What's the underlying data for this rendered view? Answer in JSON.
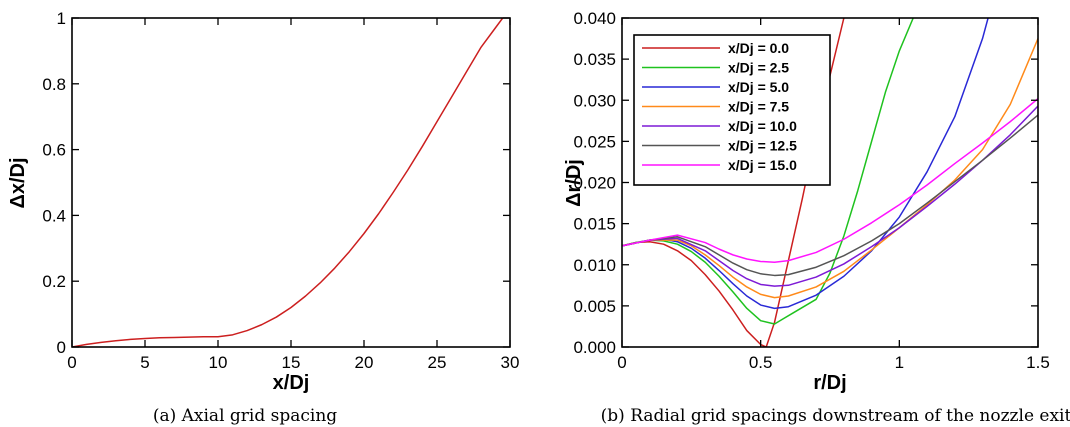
{
  "chart_data": [
    {
      "type": "line",
      "caption": "(a) Axial grid spacing",
      "xlabel": "x/Dj",
      "ylabel": "Δx/Dj",
      "xlim": [
        0,
        30
      ],
      "ylim": [
        0,
        1
      ],
      "xticks": [
        "0",
        "5",
        "10",
        "15",
        "20",
        "25",
        "30"
      ],
      "yticks": [
        "0",
        "0.2",
        "0.4",
        "0.6",
        "0.8",
        "1"
      ],
      "grid": false,
      "series": [
        {
          "color": "#cc1f1f",
          "x": [
            0,
            1,
            2,
            3,
            4,
            5,
            6,
            7,
            8,
            9,
            10,
            11,
            12,
            13,
            14,
            15,
            16,
            17,
            18,
            19,
            20,
            21,
            22,
            23,
            24,
            25,
            26,
            27,
            28,
            29,
            29.5
          ],
          "y": [
            0.0,
            0.008,
            0.014,
            0.019,
            0.023,
            0.026,
            0.028,
            0.029,
            0.03,
            0.031,
            0.031,
            0.037,
            0.05,
            0.068,
            0.091,
            0.12,
            0.155,
            0.195,
            0.24,
            0.29,
            0.345,
            0.405,
            0.47,
            0.538,
            0.61,
            0.685,
            0.76,
            0.835,
            0.91,
            0.97,
            1.0
          ]
        }
      ]
    },
    {
      "type": "line",
      "caption": "(b) Radial grid spacings downstream of the nozzle exit",
      "xlabel": "r/Dj",
      "ylabel": "Δr/Dj",
      "xlim": [
        0,
        1.5
      ],
      "ylim": [
        0,
        0.04
      ],
      "xticks": [
        "0",
        "0.5",
        "1",
        "1.5"
      ],
      "yticks": [
        "0.000",
        "0.005",
        "0.010",
        "0.015",
        "0.020",
        "0.025",
        "0.030",
        "0.035",
        "0.040"
      ],
      "grid": false,
      "legend_position": "top-left",
      "series": [
        {
          "name": "x/Dj = 0.0",
          "color": "#cc1f1f",
          "x": [
            0,
            0.05,
            0.1,
            0.15,
            0.2,
            0.25,
            0.3,
            0.35,
            0.4,
            0.45,
            0.5,
            0.52,
            0.55,
            0.6,
            0.65,
            0.7,
            0.75,
            0.8
          ],
          "y": [
            0.0123,
            0.0127,
            0.0128,
            0.0125,
            0.0117,
            0.0105,
            0.0088,
            0.0068,
            0.0045,
            0.002,
            0.0003,
            0.0,
            0.003,
            0.0105,
            0.018,
            0.026,
            0.033,
            0.04
          ]
        },
        {
          "name": "x/Dj = 2.5",
          "color": "#1fc21f",
          "x": [
            0,
            0.05,
            0.1,
            0.15,
            0.2,
            0.25,
            0.3,
            0.35,
            0.4,
            0.45,
            0.5,
            0.55,
            0.58,
            0.62,
            0.7,
            0.75,
            0.8,
            0.85,
            0.9,
            0.95,
            1.0,
            1.05
          ],
          "y": [
            0.0123,
            0.0127,
            0.013,
            0.0129,
            0.0125,
            0.0116,
            0.0103,
            0.0086,
            0.0067,
            0.0047,
            0.0032,
            0.0028,
            0.0034,
            0.0042,
            0.0058,
            0.009,
            0.0135,
            0.019,
            0.025,
            0.031,
            0.036,
            0.04
          ]
        },
        {
          "name": "x/Dj = 5.0",
          "color": "#2929d6",
          "x": [
            0,
            0.1,
            0.15,
            0.2,
            0.25,
            0.3,
            0.35,
            0.4,
            0.45,
            0.5,
            0.55,
            0.6,
            0.7,
            0.8,
            0.9,
            1.0,
            1.1,
            1.2,
            1.3,
            1.32
          ],
          "y": [
            0.0123,
            0.013,
            0.0131,
            0.0128,
            0.012,
            0.0108,
            0.0093,
            0.0077,
            0.0062,
            0.0051,
            0.0047,
            0.0049,
            0.0063,
            0.0086,
            0.0117,
            0.0158,
            0.0213,
            0.028,
            0.0375,
            0.04
          ]
        },
        {
          "name": "x/Dj = 7.5",
          "color": "#ff8a1a",
          "x": [
            0,
            0.1,
            0.2,
            0.25,
            0.3,
            0.35,
            0.4,
            0.45,
            0.5,
            0.55,
            0.6,
            0.7,
            0.8,
            0.9,
            1.0,
            1.1,
            1.2,
            1.3,
            1.4,
            1.5
          ],
          "y": [
            0.0123,
            0.013,
            0.013,
            0.0123,
            0.0112,
            0.0099,
            0.0085,
            0.0073,
            0.0064,
            0.006,
            0.0062,
            0.0073,
            0.0092,
            0.0118,
            0.0145,
            0.0173,
            0.0203,
            0.024,
            0.0295,
            0.0375
          ]
        },
        {
          "name": "x/Dj = 10.0",
          "color": "#7d1ad6",
          "x": [
            0,
            0.1,
            0.2,
            0.3,
            0.35,
            0.4,
            0.45,
            0.5,
            0.55,
            0.6,
            0.7,
            0.8,
            0.9,
            1.0,
            1.1,
            1.2,
            1.3,
            1.4,
            1.5
          ],
          "y": [
            0.0123,
            0.013,
            0.0132,
            0.0117,
            0.0105,
            0.0093,
            0.0083,
            0.0076,
            0.0074,
            0.0075,
            0.0085,
            0.0101,
            0.0122,
            0.0145,
            0.0171,
            0.0198,
            0.0227,
            0.0258,
            0.0293
          ]
        },
        {
          "name": "x/Dj = 12.5",
          "color": "#555555",
          "x": [
            0,
            0.1,
            0.2,
            0.3,
            0.35,
            0.4,
            0.45,
            0.5,
            0.55,
            0.6,
            0.7,
            0.8,
            0.9,
            1.0,
            1.1,
            1.2,
            1.3,
            1.4,
            1.5
          ],
          "y": [
            0.0123,
            0.013,
            0.0134,
            0.0122,
            0.0112,
            0.0102,
            0.0094,
            0.0089,
            0.0087,
            0.0088,
            0.0097,
            0.0111,
            0.0129,
            0.015,
            0.0175,
            0.0201,
            0.0227,
            0.0254,
            0.0282
          ]
        },
        {
          "name": "x/Dj = 15.0",
          "color": "#ff14ff",
          "x": [
            0,
            0.1,
            0.2,
            0.3,
            0.35,
            0.4,
            0.45,
            0.5,
            0.55,
            0.6,
            0.7,
            0.8,
            0.9,
            1.0,
            1.1,
            1.2,
            1.3,
            1.4,
            1.5
          ],
          "y": [
            0.0123,
            0.013,
            0.0136,
            0.0127,
            0.0119,
            0.0112,
            0.0107,
            0.0104,
            0.0103,
            0.0105,
            0.0115,
            0.0131,
            0.0151,
            0.0173,
            0.0197,
            0.0223,
            0.0248,
            0.0274,
            0.0302
          ]
        }
      ]
    }
  ]
}
